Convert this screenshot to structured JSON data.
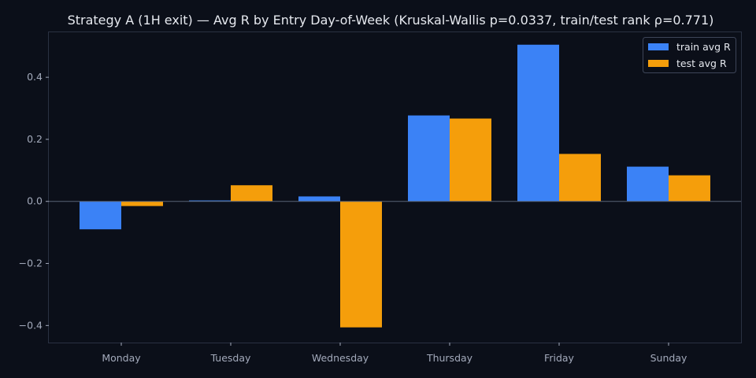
{
  "chart_data": {
    "type": "bar",
    "title": "Strategy A (1H exit) — Avg R by Entry Day-of-Week (Kruskal-Wallis p=0.0337, train/test rank ρ=0.771)",
    "xlabel": "",
    "ylabel": "",
    "categories": [
      "Monday",
      "Tuesday",
      "Wednesday",
      "Thursday",
      "Friday",
      "Sunday"
    ],
    "series": [
      {
        "name": "train avg R",
        "color": "#3b82f6",
        "values": [
          -0.09,
          0.003,
          0.016,
          0.277,
          0.505,
          0.112
        ]
      },
      {
        "name": "test avg R",
        "color": "#f59e0b",
        "values": [
          -0.015,
          0.052,
          -0.406,
          0.267,
          0.153,
          0.084
        ]
      }
    ],
    "ylim": [
      -0.455,
      0.545
    ],
    "yticks": [
      -0.4,
      -0.2,
      0.0,
      0.2,
      0.4
    ],
    "ytick_labels": [
      "−0.4",
      "−0.2",
      "0.0",
      "0.2",
      "0.4"
    ],
    "grid": false,
    "legend_position": "top-right",
    "colors": {
      "background": "#0b0f19",
      "axes_frame": "#2a3142",
      "zero_line": "#5b6475",
      "text": "#e6e9ef",
      "tick_text": "#a3aabb"
    }
  }
}
